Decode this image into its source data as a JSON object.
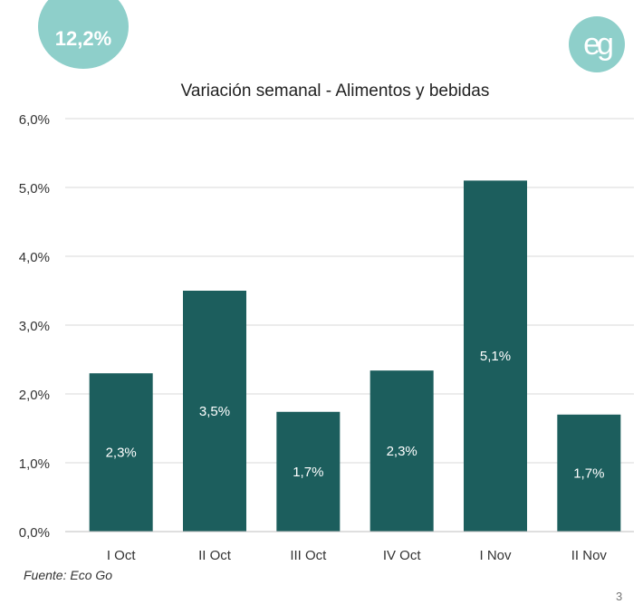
{
  "badge": {
    "text": "12,2%"
  },
  "logo": {
    "name": "eg-logo",
    "text": "eg"
  },
  "colors": {
    "bar": "#1c5e5d",
    "badge": "#8ecfca",
    "grid": "#d9d9d9",
    "axis": "#bfbfbf"
  },
  "footer": {
    "source": "Fuente: Eco Go",
    "page": "3"
  },
  "chart_data": {
    "type": "bar",
    "title": "Variación semanal - Alimentos y bebidas",
    "xlabel": "",
    "ylabel": "",
    "categories": [
      "I Oct",
      "II Oct",
      "III Oct",
      "IV Oct",
      "I Nov",
      "II Nov"
    ],
    "values": [
      2.3,
      3.5,
      1.74,
      2.34,
      5.1,
      1.7
    ],
    "data_labels": [
      "2,3%",
      "3,5%",
      "1,7%",
      "2,3%",
      "5,1%",
      "1,7%"
    ],
    "ylim": [
      0,
      6
    ],
    "yticks": [
      "0,0%",
      "1,0%",
      "2,0%",
      "3,0%",
      "4,0%",
      "5,0%",
      "6,0%"
    ],
    "grid": true,
    "legend": "none"
  }
}
